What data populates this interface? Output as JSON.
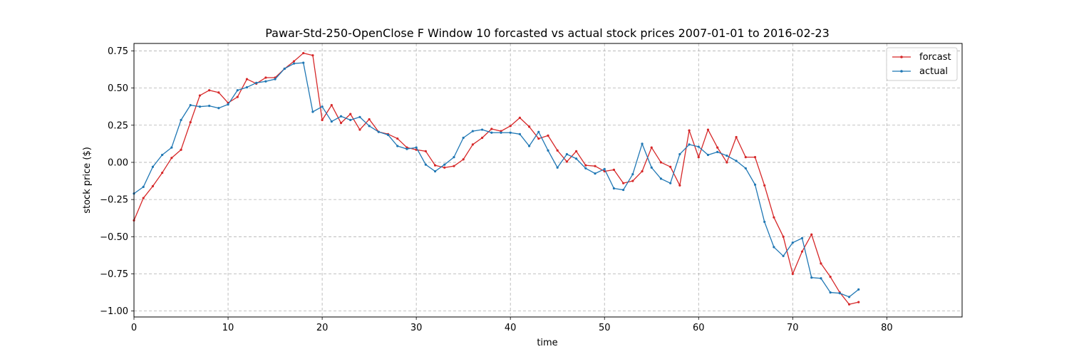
{
  "chart_data": {
    "type": "line",
    "title": "Pawar-Std-250-OpenClose F Window 10 forcasted vs actual stock prices 2007-01-01 to 2016-02-23",
    "xlabel": "time",
    "ylabel": "stock price ($)",
    "xlim": [
      0,
      88
    ],
    "ylim": [
      -1.04,
      0.8
    ],
    "xticks": [
      0,
      10,
      20,
      30,
      40,
      50,
      60,
      70,
      80
    ],
    "yticks": [
      -1.0,
      -0.75,
      -0.5,
      -0.25,
      0.0,
      0.25,
      0.5,
      0.75
    ],
    "ytick_labels": [
      "−1.00",
      "−0.75",
      "−0.50",
      "−0.25",
      "0.00",
      "0.25",
      "0.50",
      "0.75"
    ],
    "grid": true,
    "legend_position": "top-right",
    "series": [
      {
        "name": "forcast",
        "color": "#d62728",
        "x": [
          0,
          1,
          2,
          3,
          4,
          5,
          6,
          7,
          8,
          9,
          10,
          11,
          12,
          13,
          14,
          15,
          16,
          17,
          18,
          19,
          20,
          21,
          22,
          23,
          24,
          25,
          26,
          27,
          28,
          29,
          30,
          31,
          32,
          33,
          34,
          35,
          36,
          37,
          38,
          39,
          40,
          41,
          42,
          43,
          44,
          45,
          46,
          47,
          48,
          49,
          50,
          51,
          52,
          53,
          54,
          55,
          56,
          57,
          58,
          59,
          60,
          61,
          62,
          63,
          64,
          65,
          66,
          67,
          68,
          69,
          70,
          71,
          72,
          73,
          74,
          75,
          76,
          77
        ],
        "values": [
          -0.39,
          -0.24,
          -0.16,
          -0.07,
          0.03,
          0.085,
          0.27,
          0.45,
          0.485,
          0.47,
          0.4,
          0.44,
          0.56,
          0.53,
          0.57,
          0.57,
          0.63,
          0.68,
          0.735,
          0.72,
          0.285,
          0.385,
          0.265,
          0.325,
          0.22,
          0.29,
          0.205,
          0.19,
          0.16,
          0.1,
          0.085,
          0.075,
          -0.02,
          -0.035,
          -0.025,
          0.02,
          0.12,
          0.165,
          0.225,
          0.21,
          0.245,
          0.3,
          0.24,
          0.16,
          0.18,
          0.08,
          0.005,
          0.075,
          -0.02,
          -0.025,
          -0.06,
          -0.05,
          -0.14,
          -0.125,
          -0.06,
          0.1,
          0.0,
          -0.03,
          -0.155,
          0.215,
          0.035,
          0.22,
          0.1,
          0.0,
          0.17,
          0.035,
          0.035,
          -0.155,
          -0.37,
          -0.5,
          -0.75,
          -0.6,
          -0.485,
          -0.68,
          -0.77,
          -0.875,
          -0.955,
          -0.94
        ]
      },
      {
        "name": "actual",
        "color": "#1f77b4",
        "x": [
          0,
          1,
          2,
          3,
          4,
          5,
          6,
          7,
          8,
          9,
          10,
          11,
          12,
          13,
          14,
          15,
          16,
          17,
          18,
          19,
          20,
          21,
          22,
          23,
          24,
          25,
          26,
          27,
          28,
          29,
          30,
          31,
          32,
          33,
          34,
          35,
          36,
          37,
          38,
          39,
          40,
          41,
          42,
          43,
          44,
          45,
          46,
          47,
          48,
          49,
          50,
          51,
          52,
          53,
          54,
          55,
          56,
          57,
          58,
          59,
          60,
          61,
          62,
          63,
          64,
          65,
          66,
          67,
          68,
          69,
          70,
          71,
          72,
          73,
          74,
          75,
          76,
          77
        ],
        "values": [
          -0.21,
          -0.165,
          -0.03,
          0.05,
          0.1,
          0.285,
          0.385,
          0.375,
          0.38,
          0.365,
          0.39,
          0.485,
          0.505,
          0.535,
          0.545,
          0.56,
          0.63,
          0.665,
          0.67,
          0.34,
          0.375,
          0.275,
          0.31,
          0.285,
          0.305,
          0.245,
          0.205,
          0.185,
          0.11,
          0.09,
          0.1,
          -0.015,
          -0.06,
          -0.015,
          0.035,
          0.165,
          0.21,
          0.22,
          0.2,
          0.2,
          0.2,
          0.19,
          0.11,
          0.205,
          0.08,
          -0.035,
          0.055,
          0.025,
          -0.04,
          -0.075,
          -0.045,
          -0.175,
          -0.185,
          -0.08,
          0.125,
          -0.035,
          -0.11,
          -0.14,
          0.055,
          0.12,
          0.105,
          0.05,
          0.07,
          0.045,
          0.01,
          -0.04,
          -0.15,
          -0.4,
          -0.57,
          -0.63,
          -0.54,
          -0.51,
          -0.775,
          -0.78,
          -0.875,
          -0.88,
          -0.905,
          -0.855
        ]
      }
    ]
  }
}
